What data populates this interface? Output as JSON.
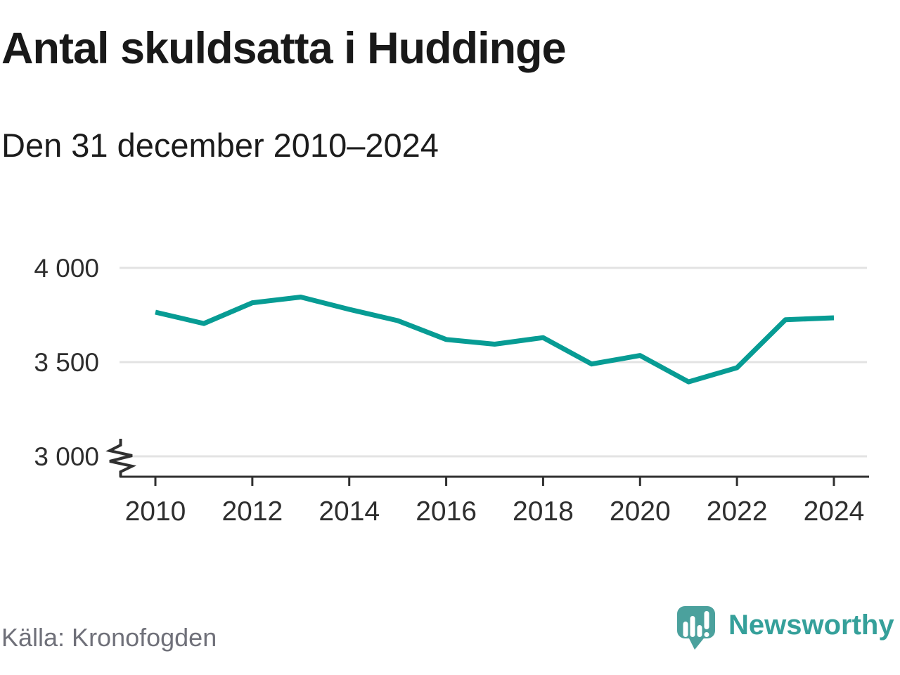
{
  "header": {
    "title": "Antal skuldsatta i Huddinge",
    "subtitle": "Den 31 december 2010–2024"
  },
  "footer": {
    "source": "Källa: Kronofogden",
    "brand": "Newsworthy"
  },
  "colors": {
    "line": "#079c94",
    "grid": "#e3e3e3",
    "axis": "#303030",
    "tick_label": "#2e2e2e",
    "title": "#191919",
    "source_text": "#6f7079",
    "brand_bubble": "#4ba19d",
    "brand_text": "#35a09a"
  },
  "chart_data": {
    "type": "line",
    "title": "Antal skuldsatta i Huddinge",
    "subtitle": "Den 31 december 2010–2024",
    "x": [
      2010,
      2011,
      2012,
      2013,
      2014,
      2015,
      2016,
      2017,
      2018,
      2019,
      2020,
      2021,
      2022,
      2023,
      2024
    ],
    "series": [
      {
        "name": "Antal skuldsatta",
        "values": [
          3765,
          3705,
          3815,
          3845,
          3780,
          3720,
          3620,
          3595,
          3630,
          3490,
          3535,
          3395,
          3470,
          3725,
          3735
        ]
      }
    ],
    "xlabel": "",
    "ylabel": "",
    "x_ticks": [
      2010,
      2012,
      2014,
      2016,
      2018,
      2020,
      2022,
      2024
    ],
    "x_tick_labels": [
      "2010",
      "2012",
      "2014",
      "2016",
      "2018",
      "2020",
      "2022",
      "2024"
    ],
    "y_ticks": [
      3000,
      3500,
      4000
    ],
    "y_tick_labels": [
      "3 000",
      "3 500",
      "4 000"
    ],
    "ylim": [
      3000,
      4100
    ],
    "axis_break_below": 3000,
    "grid": "horizontal",
    "legend": "none"
  }
}
